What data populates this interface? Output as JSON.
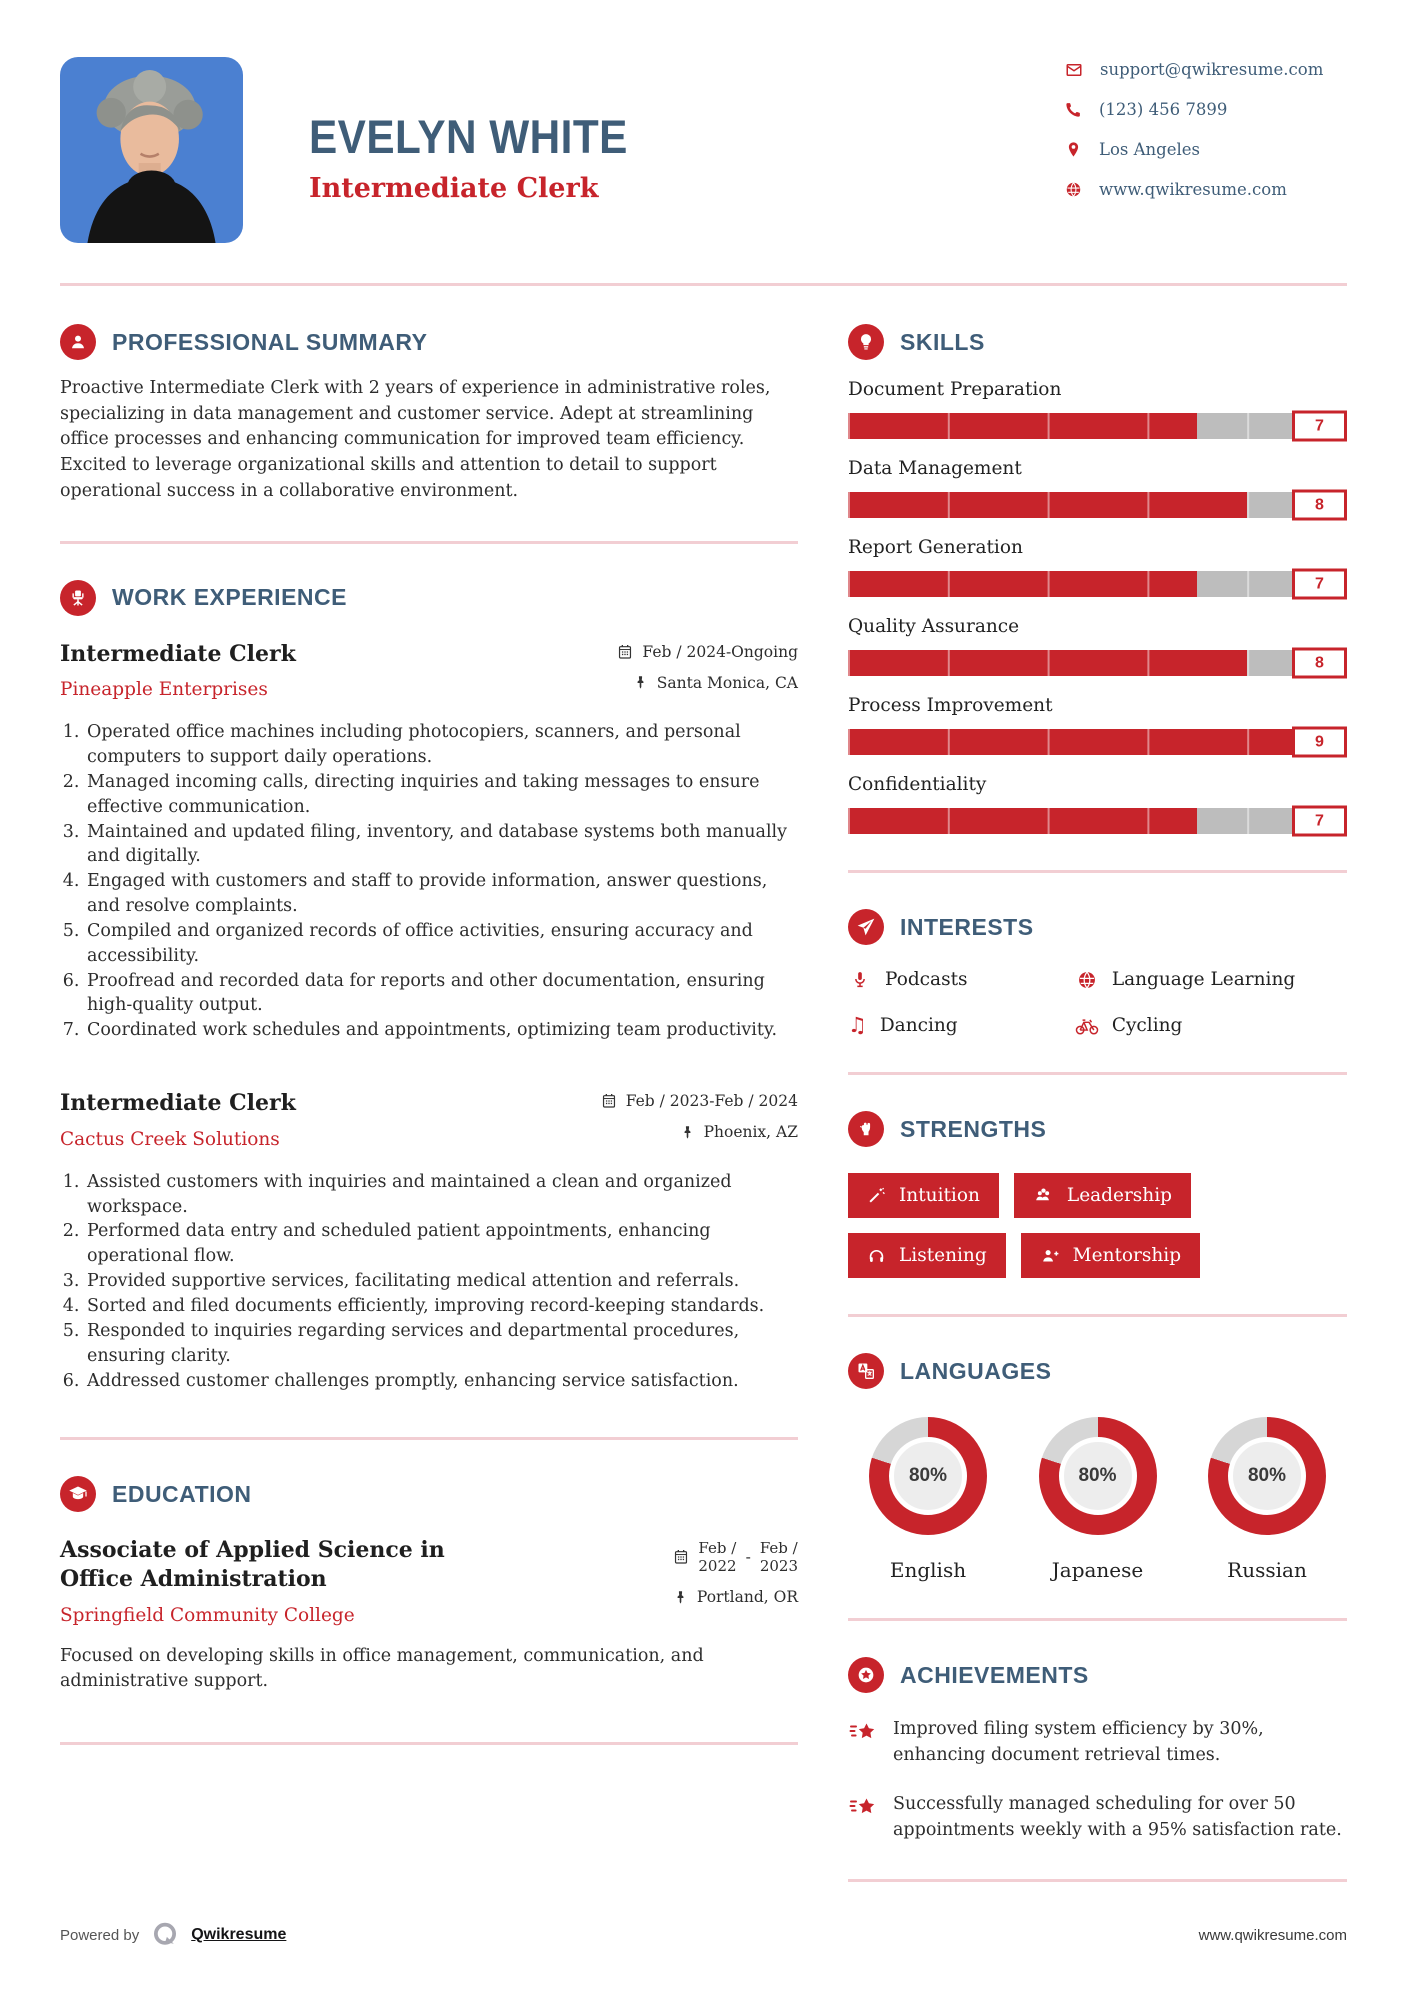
{
  "header": {
    "name": "EVELYN WHITE",
    "title": "Intermediate Clerk",
    "contact": [
      {
        "icon": "email-icon",
        "text": "support@qwikresume.com"
      },
      {
        "icon": "phone-icon",
        "text": "(123) 456 7899"
      },
      {
        "icon": "location-icon",
        "text": "Los Angeles"
      },
      {
        "icon": "globe-icon",
        "text": "www.qwikresume.com"
      }
    ]
  },
  "sections": {
    "summary": {
      "icon": "user-icon",
      "heading": "PROFESSIONAL SUMMARY",
      "text": "Proactive Intermediate Clerk with 2 years of experience in administrative roles, specializing in data management and customer service. Adept at streamlining office processes and enhancing communication for improved team efficiency. Excited to leverage organizational skills and attention to detail to support operational success in a collaborative environment."
    },
    "work": {
      "icon": "office-chair-icon",
      "heading": "WORK EXPERIENCE",
      "jobs": [
        {
          "title": "Intermediate Clerk",
          "company": "Pineapple Enterprises",
          "date": "Feb / 2024-Ongoing",
          "location": "Santa Monica, CA",
          "bullets": [
            "Operated office machines including photocopiers, scanners, and personal computers to support daily operations.",
            "Managed incoming calls, directing inquiries and taking messages to ensure effective communication.",
            "Maintained and updated filing, inventory, and database systems both manually and digitally.",
            "Engaged with customers and staff to provide information, answer questions, and resolve complaints.",
            "Compiled and organized records of office activities, ensuring accuracy and accessibility.",
            "Proofread and recorded data for reports and other documentation, ensuring high-quality output.",
            "Coordinated work schedules and appointments, optimizing team productivity."
          ]
        },
        {
          "title": "Intermediate Clerk",
          "company": "Cactus Creek Solutions",
          "date": "Feb / 2023-Feb / 2024",
          "location": "Phoenix, AZ",
          "bullets": [
            "Assisted customers with inquiries and maintained a clean and organized workspace.",
            "Performed data entry and scheduled patient appointments, enhancing operational flow.",
            "Provided supportive services, facilitating medical attention and referrals.",
            "Sorted and filed documents efficiently, improving record-keeping standards.",
            "Responded to inquiries regarding services and departmental procedures, ensuring clarity.",
            "Addressed customer challenges promptly, enhancing service satisfaction."
          ]
        }
      ]
    },
    "education": {
      "icon": "graduation-cap-icon",
      "heading": "EDUCATION",
      "degree": "Associate of Applied Science in Office Administration",
      "school": "Springfield Community College",
      "date_start_l1": "Feb /",
      "date_start_l2": "2022",
      "date_sep": "-",
      "date_end_l1": "Feb /",
      "date_end_l2": "2023",
      "location": "Portland, OR",
      "description": "Focused on developing skills in office management, communication, and administrative support."
    },
    "skills": {
      "icon": "lightbulb-icon",
      "heading": "SKILLS",
      "max_score": 10,
      "items": [
        {
          "name": "Document Preparation",
          "score": 7
        },
        {
          "name": "Data Management",
          "score": 8
        },
        {
          "name": "Report Generation",
          "score": 7
        },
        {
          "name": "Quality Assurance",
          "score": 8
        },
        {
          "name": "Process Improvement",
          "score": 9
        },
        {
          "name": "Confidentiality",
          "score": 7
        }
      ]
    },
    "interests": {
      "icon": "paper-plane-icon",
      "heading": "INTERESTS",
      "items": [
        {
          "icon": "microphone-icon",
          "label": "Podcasts"
        },
        {
          "icon": "globe-icon",
          "label": "Language Learning"
        },
        {
          "icon": "music-note-icon",
          "label": "Dancing"
        },
        {
          "icon": "bicycle-icon",
          "label": "Cycling"
        }
      ]
    },
    "strengths": {
      "icon": "fist-icon",
      "heading": "STRENGTHS",
      "items": [
        {
          "icon": "magic-wand-icon",
          "label": "Intuition"
        },
        {
          "icon": "users-icon",
          "label": "Leadership"
        },
        {
          "icon": "headphones-icon",
          "label": "Listening"
        },
        {
          "icon": "user-plus-icon",
          "label": "Mentorship"
        }
      ]
    },
    "languages": {
      "icon": "translate-icon",
      "heading": "LANGUAGES",
      "items": [
        {
          "label": "English",
          "percent": 80,
          "percent_label": "80%"
        },
        {
          "label": "Japanese",
          "percent": 80,
          "percent_label": "80%"
        },
        {
          "label": "Russian",
          "percent": 80,
          "percent_label": "80%"
        }
      ]
    },
    "achievements": {
      "icon": "award-star-icon",
      "heading": "ACHIEVEMENTS",
      "items": [
        "Improved filing system efficiency by 30%, enhancing document retrieval times.",
        "Successfully managed scheduling for over 50 appointments weekly with a 95% satisfaction rate."
      ]
    }
  },
  "footer": {
    "powered_by": "Powered by",
    "brand": "Qwikresume",
    "website": "www.qwikresume.com"
  },
  "colors": {
    "accent_red": "#c7242b",
    "heading_blue": "#3f5d78",
    "bar_gray": "#bdbdbd",
    "divider_pink": "#f2ced3",
    "photo_blue": "#4b80d1"
  }
}
